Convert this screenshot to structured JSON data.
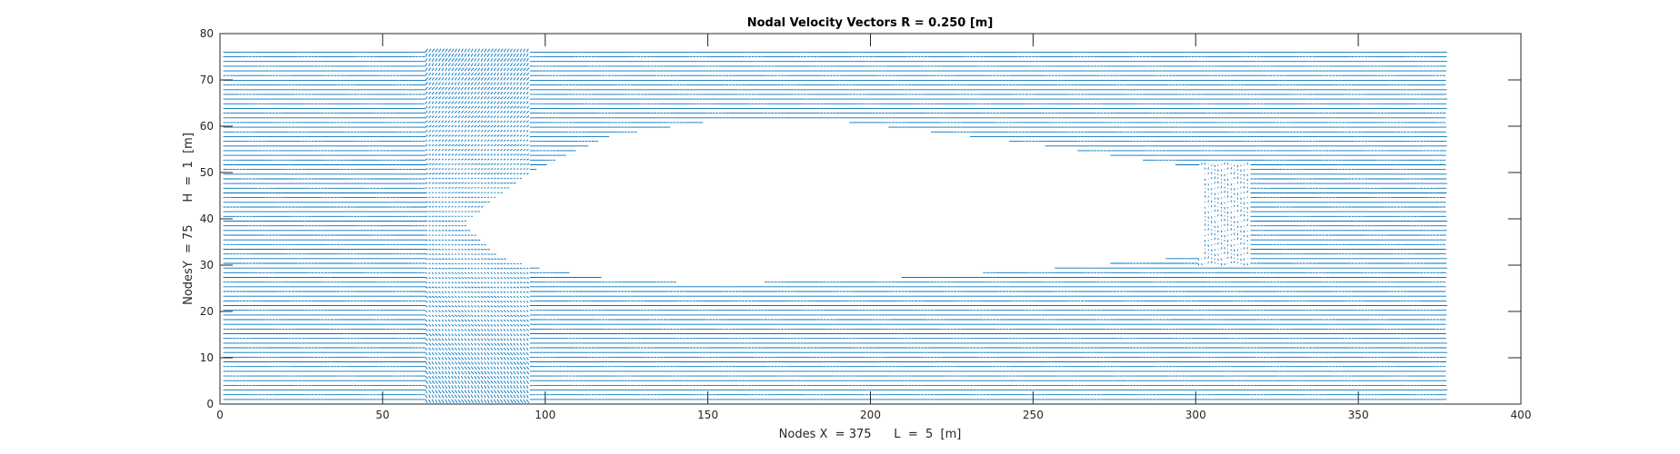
{
  "chart_data": {
    "type": "quiver",
    "title": "Nodal Velocity Vectors R = 0.250 [m]",
    "xlabel": "Nodes X  = 375      L  =  5  [m]",
    "ylabel": "NodesY  = 75      H  =  1  [m]",
    "xlim": [
      0,
      400
    ],
    "ylim": [
      0,
      80
    ],
    "xticks": [
      0,
      50,
      100,
      150,
      200,
      250,
      300,
      350,
      400
    ],
    "yticks": [
      0,
      10,
      20,
      30,
      40,
      50,
      60,
      70,
      80
    ],
    "grid": false,
    "box": true,
    "nodes_x": 375,
    "nodes_y": 75,
    "vector_color": "#0072BD",
    "obstacle": {
      "shape": "rounded-body",
      "leading_edge": [
        75,
        39
      ],
      "nose_top": [
        120,
        58
      ],
      "top_flat": [
        [
          150,
          61
        ],
        [
          190,
          61
        ]
      ],
      "top_trailing": [
        [
          240,
          57
        ],
        [
          300,
          51
        ]
      ],
      "bottom_flat": [
        [
          150,
          26
        ],
        [
          200,
          27
        ]
      ],
      "bottom_trailing": [
        [
          250,
          29
        ],
        [
          300,
          32
        ]
      ],
      "trailing_edge_x": 302
    }
  }
}
